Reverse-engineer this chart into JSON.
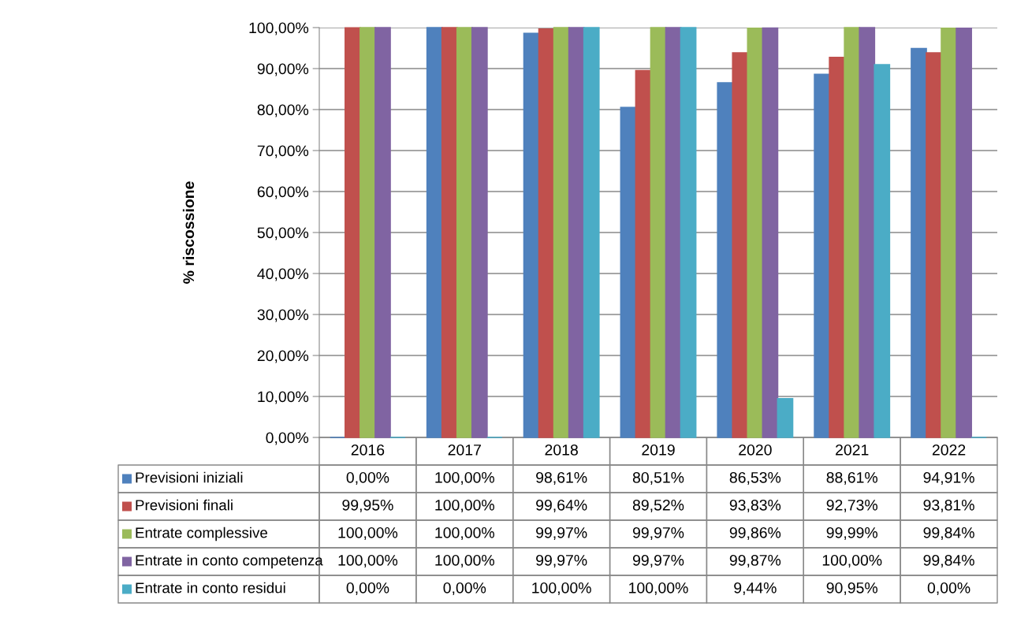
{
  "chart_data": {
    "type": "bar",
    "ylabel": "% riscossione",
    "categories": [
      "2016",
      "2017",
      "2018",
      "2019",
      "2020",
      "2021",
      "2022"
    ],
    "series": [
      {
        "name": "Previsioni iniziali",
        "color": "#4f81bd",
        "values": [
          0,
          100,
          98.61,
          80.51,
          86.53,
          88.61,
          94.91
        ],
        "value_labels": [
          "0,00%",
          "100,00%",
          "98,61%",
          "80,51%",
          "86,53%",
          "88,61%",
          "94,91%"
        ]
      },
      {
        "name": "Previsioni finali",
        "color": "#c0504d",
        "values": [
          99.95,
          100,
          99.64,
          89.52,
          93.83,
          92.73,
          93.81
        ],
        "value_labels": [
          "99,95%",
          "100,00%",
          "99,64%",
          "89,52%",
          "93,83%",
          "92,73%",
          "93,81%"
        ]
      },
      {
        "name": "Entrate complessive",
        "color": "#9bbb59",
        "values": [
          100,
          100,
          99.97,
          99.97,
          99.86,
          99.99,
          99.84
        ],
        "value_labels": [
          "100,00%",
          "100,00%",
          "99,97%",
          "99,97%",
          "99,86%",
          "99,99%",
          "99,84%"
        ]
      },
      {
        "name": "Entrate in conto competenza",
        "color": "#8064a2",
        "values": [
          100,
          100,
          99.97,
          99.97,
          99.87,
          100,
          99.84
        ],
        "value_labels": [
          "100,00%",
          "100,00%",
          "99,97%",
          "99,97%",
          "99,87%",
          "100,00%",
          "99,84%"
        ]
      },
      {
        "name": "Entrate in conto residui",
        "color": "#4bacc6",
        "values": [
          0,
          0,
          100,
          100,
          9.44,
          90.95,
          0
        ],
        "value_labels": [
          "0,00%",
          "0,00%",
          "100,00%",
          "100,00%",
          "9,44%",
          "90,95%",
          "0,00%"
        ]
      }
    ],
    "ylim": [
      0,
      100
    ],
    "yticks": [
      {
        "value": 0,
        "label": "0,00%"
      },
      {
        "value": 10,
        "label": "10,00%"
      },
      {
        "value": 20,
        "label": "20,00%"
      },
      {
        "value": 30,
        "label": "30,00%"
      },
      {
        "value": 40,
        "label": "40,00%"
      },
      {
        "value": 50,
        "label": "50,00%"
      },
      {
        "value": 60,
        "label": "60,00%"
      },
      {
        "value": 70,
        "label": "70,00%"
      },
      {
        "value": 80,
        "label": "80,00%"
      },
      {
        "value": 90,
        "label": "90,00%"
      },
      {
        "value": 100,
        "label": "100,00%"
      }
    ],
    "grid": "y",
    "legend": "bottom"
  }
}
